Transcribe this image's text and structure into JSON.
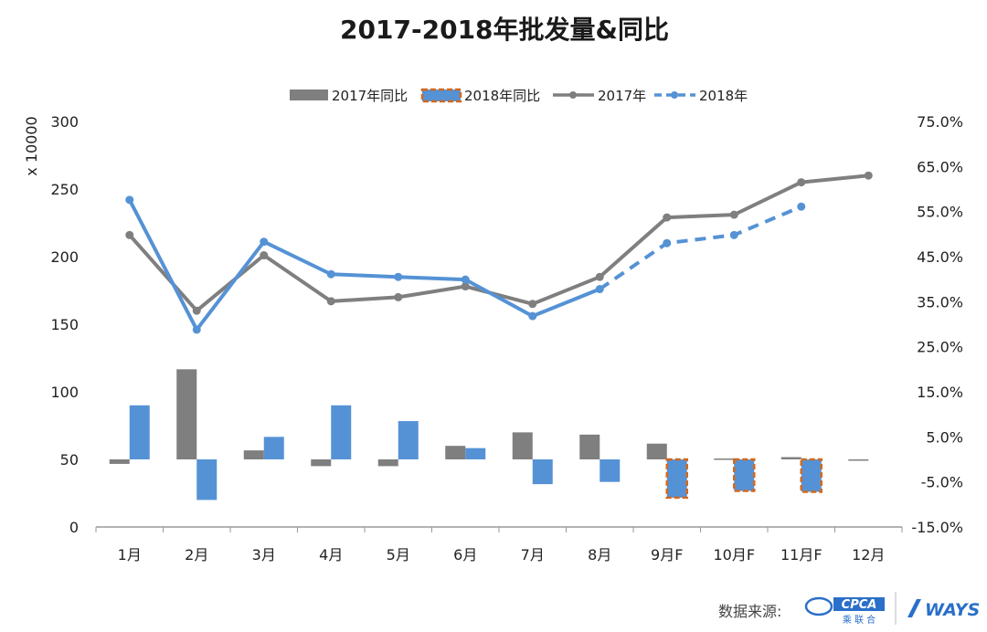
{
  "chart_data": {
    "type": "bar+line",
    "title": "2017-2018年批发量&同比",
    "categories": [
      "1月",
      "2月",
      "3月",
      "4月",
      "5月",
      "6月",
      "7月",
      "8月",
      "9月F",
      "10月F",
      "11月F",
      "12月"
    ],
    "y_left": {
      "label": "x 10000",
      "ylim": [
        0,
        300
      ],
      "ticks": [
        "0",
        "50",
        "100",
        "150",
        "200",
        "250",
        "300"
      ]
    },
    "y_right": {
      "ylim": [
        -15,
        75
      ],
      "ticks": [
        "-15.0%",
        "-5.0%",
        "5.0%",
        "15.0%",
        "25.0%",
        "35.0%",
        "45.0%",
        "55.0%",
        "65.0%",
        "75.0%"
      ]
    },
    "series": [
      {
        "name": "2017年同比",
        "type": "bar",
        "axis": "right",
        "color": "#7f7f7f",
        "values": [
          -1,
          20,
          2,
          -1.5,
          -1.5,
          3,
          6,
          5.5,
          3.5,
          0.2,
          0.5,
          -0.3
        ]
      },
      {
        "name": "2018年同比",
        "type": "bar",
        "axis": "right",
        "color": "#5592d5",
        "forecast_border": "#d2691e",
        "forecast_from": 8,
        "values": [
          12,
          -9,
          5,
          12,
          8.5,
          2.5,
          -5.5,
          -5,
          -8.5,
          -7,
          -7.2,
          null
        ]
      },
      {
        "name": "2017年",
        "type": "line",
        "axis": "left",
        "color": "#7f7f7f",
        "values": [
          216,
          160,
          201,
          167,
          170,
          178,
          165,
          185,
          229,
          231,
          255,
          260
        ]
      },
      {
        "name": "2018年",
        "type": "line",
        "axis": "left",
        "color": "#5592d5",
        "dashed_from": 7,
        "values": [
          242,
          146,
          211,
          187,
          185,
          183,
          156,
          176,
          210,
          216,
          237,
          null
        ]
      }
    ],
    "legend_position": "top-center",
    "grid": false
  },
  "footer": {
    "source_label": "数据来源:",
    "logo1_text": "CPCA",
    "logo1_sub": "乘 联 合",
    "logo2_text": "WAYS"
  },
  "colors": {
    "gray": "#7f7f7f",
    "blue": "#5592d5",
    "orange": "#d2691e"
  }
}
